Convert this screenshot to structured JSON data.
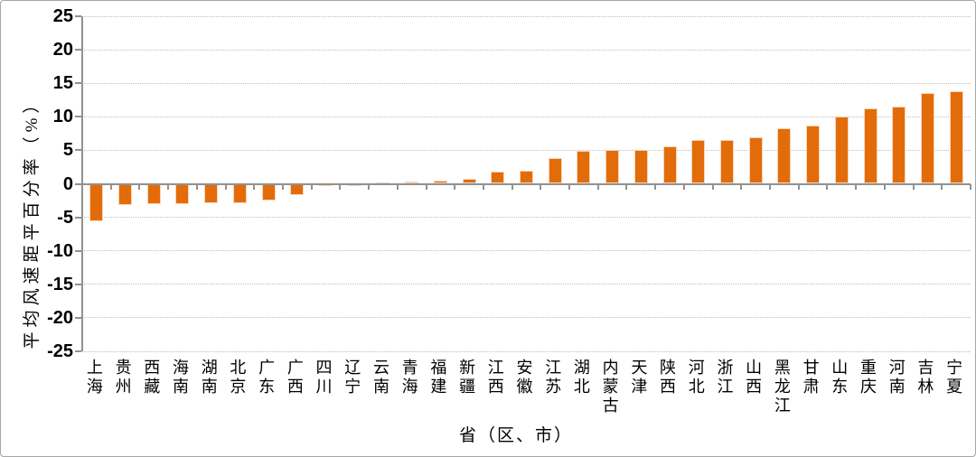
{
  "chart_data": {
    "type": "bar",
    "title": "",
    "xlabel": "省（区、市）",
    "ylabel": "平均风速距平百分率（%）",
    "categories": [
      "上海",
      "贵州",
      "西藏",
      "海南",
      "湖南",
      "北京",
      "广东",
      "广西",
      "四川",
      "辽宁",
      "云南",
      "青海",
      "福建",
      "新疆",
      "江西",
      "安徽",
      "江苏",
      "湖北",
      "内蒙古",
      "天津",
      "陕西",
      "河北",
      "浙江",
      "山西",
      "黑龙江",
      "甘肃",
      "山东",
      "重庆",
      "河南",
      "吉林",
      "宁夏"
    ],
    "values": [
      -5.6,
      -3.2,
      -3.0,
      -3.0,
      -2.9,
      -2.9,
      -2.5,
      -1.7,
      -0.3,
      -0.3,
      0.2,
      0.3,
      0.5,
      0.7,
      1.8,
      1.9,
      3.9,
      4.9,
      5.1,
      5.1,
      5.6,
      6.6,
      6.6,
      7.0,
      8.3,
      8.7,
      10.0,
      11.3,
      11.5,
      13.5,
      13.8
    ],
    "ylim": [
      -25,
      25
    ],
    "yticks": [
      25,
      20,
      15,
      10,
      5,
      0,
      -5,
      -10,
      -15,
      -20,
      -25
    ],
    "grid": "horizontal-dotted",
    "legend": "none",
    "bar_color": "#E36C0A",
    "bar_border_color": "#FBD5B5",
    "axis_color": "#919191",
    "grid_color": "#BDBDBD",
    "text_color": "#000000"
  }
}
